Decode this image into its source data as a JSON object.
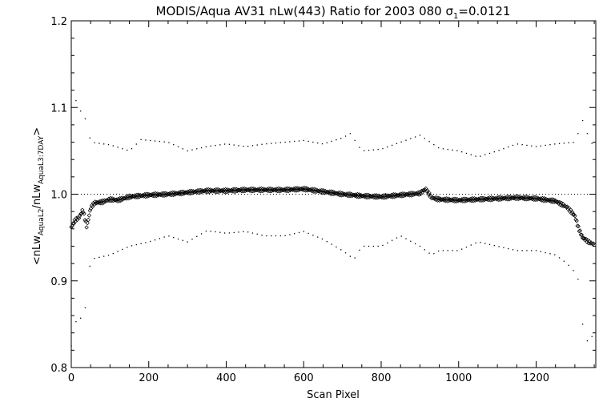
{
  "chart_data": {
    "type": "scatter",
    "title": "MODIS/Aqua AV31 nLw(443) Ratio for 2003 080 σ",
    "title_sub": "1",
    "title_suffix": "=0.0121",
    "xlabel": "Scan Pixel",
    "ylabel_parts": {
      "a": "<nLw",
      "a_sub": "AquaL2",
      "b": "/nLw",
      "b_sub": "AquaL3:7DAY",
      "c": ">"
    },
    "xlim": [
      0,
      1354
    ],
    "ylim": [
      0.8,
      1.2
    ],
    "xticks": [
      0,
      200,
      400,
      600,
      800,
      1000,
      1200
    ],
    "yticks": [
      0.8,
      0.9,
      1.0,
      1.1,
      1.2
    ],
    "xtick_labels": [
      "0",
      "200",
      "400",
      "600",
      "800",
      "1000",
      "1200"
    ],
    "ytick_labels": [
      "0.8",
      "0.9",
      "1.0",
      "1.1",
      "1.2"
    ],
    "reference_line": 1.0,
    "grid": false,
    "legend": "none",
    "series": [
      {
        "role": "mean ratio",
        "marker": "diamond",
        "points": [
          [
            0,
            0.962
          ],
          [
            10,
            0.97
          ],
          [
            20,
            0.973
          ],
          [
            30,
            0.982
          ],
          [
            40,
            0.962
          ],
          [
            50,
            0.984
          ],
          [
            60,
            0.99
          ],
          [
            80,
            0.991
          ],
          [
            100,
            0.994
          ],
          [
            120,
            0.993
          ],
          [
            150,
            0.997
          ],
          [
            200,
            0.999
          ],
          [
            250,
            1.0
          ],
          [
            300,
            1.002
          ],
          [
            350,
            1.004
          ],
          [
            400,
            1.004
          ],
          [
            450,
            1.005
          ],
          [
            500,
            1.005
          ],
          [
            550,
            1.005
          ],
          [
            600,
            1.006
          ],
          [
            650,
            1.003
          ],
          [
            700,
            1.0
          ],
          [
            750,
            0.998
          ],
          [
            800,
            0.997
          ],
          [
            850,
            0.999
          ],
          [
            900,
            1.001
          ],
          [
            915,
            1.006
          ],
          [
            930,
            0.996
          ],
          [
            950,
            0.994
          ],
          [
            1000,
            0.993
          ],
          [
            1050,
            0.994
          ],
          [
            1100,
            0.995
          ],
          [
            1150,
            0.996
          ],
          [
            1200,
            0.995
          ],
          [
            1250,
            0.992
          ],
          [
            1280,
            0.985
          ],
          [
            1300,
            0.975
          ],
          [
            1310,
            0.96
          ],
          [
            1320,
            0.95
          ],
          [
            1335,
            0.945
          ],
          [
            1350,
            0.942
          ]
        ]
      },
      {
        "role": "upper bound",
        "marker": "dot",
        "points": [
          [
            0,
            1.1
          ],
          [
            10,
            1.11
          ],
          [
            20,
            1.1
          ],
          [
            30,
            1.09
          ],
          [
            40,
            1.085
          ],
          [
            50,
            1.06
          ],
          [
            100,
            1.057
          ],
          [
            150,
            1.05
          ],
          [
            180,
            1.063
          ],
          [
            250,
            1.06
          ],
          [
            300,
            1.05
          ],
          [
            350,
            1.055
          ],
          [
            400,
            1.058
          ],
          [
            450,
            1.055
          ],
          [
            500,
            1.058
          ],
          [
            550,
            1.06
          ],
          [
            600,
            1.062
          ],
          [
            650,
            1.058
          ],
          [
            700,
            1.065
          ],
          [
            720,
            1.07
          ],
          [
            750,
            1.05
          ],
          [
            800,
            1.052
          ],
          [
            850,
            1.06
          ],
          [
            900,
            1.068
          ],
          [
            950,
            1.053
          ],
          [
            1000,
            1.05
          ],
          [
            1050,
            1.043
          ],
          [
            1100,
            1.05
          ],
          [
            1150,
            1.058
          ],
          [
            1200,
            1.055
          ],
          [
            1250,
            1.058
          ],
          [
            1300,
            1.06
          ],
          [
            1320,
            1.085
          ],
          [
            1340,
            1.06
          ],
          [
            1354,
            1.055
          ]
        ]
      },
      {
        "role": "lower bound",
        "marker": "dot",
        "points": [
          [
            0,
            0.825
          ],
          [
            10,
            0.85
          ],
          [
            20,
            0.865
          ],
          [
            30,
            0.845
          ],
          [
            50,
            0.925
          ],
          [
            100,
            0.93
          ],
          [
            150,
            0.94
          ],
          [
            200,
            0.945
          ],
          [
            250,
            0.952
          ],
          [
            300,
            0.945
          ],
          [
            350,
            0.958
          ],
          [
            400,
            0.955
          ],
          [
            450,
            0.957
          ],
          [
            500,
            0.952
          ],
          [
            550,
            0.952
          ],
          [
            600,
            0.957
          ],
          [
            650,
            0.948
          ],
          [
            700,
            0.935
          ],
          [
            730,
            0.925
          ],
          [
            750,
            0.94
          ],
          [
            800,
            0.94
          ],
          [
            850,
            0.952
          ],
          [
            900,
            0.94
          ],
          [
            930,
            0.93
          ],
          [
            950,
            0.935
          ],
          [
            1000,
            0.935
          ],
          [
            1050,
            0.945
          ],
          [
            1100,
            0.94
          ],
          [
            1150,
            0.935
          ],
          [
            1200,
            0.935
          ],
          [
            1250,
            0.93
          ],
          [
            1280,
            0.92
          ],
          [
            1300,
            0.91
          ],
          [
            1310,
            0.9
          ],
          [
            1320,
            0.85
          ],
          [
            1330,
            0.83
          ],
          [
            1354,
            0.84
          ]
        ]
      }
    ]
  }
}
